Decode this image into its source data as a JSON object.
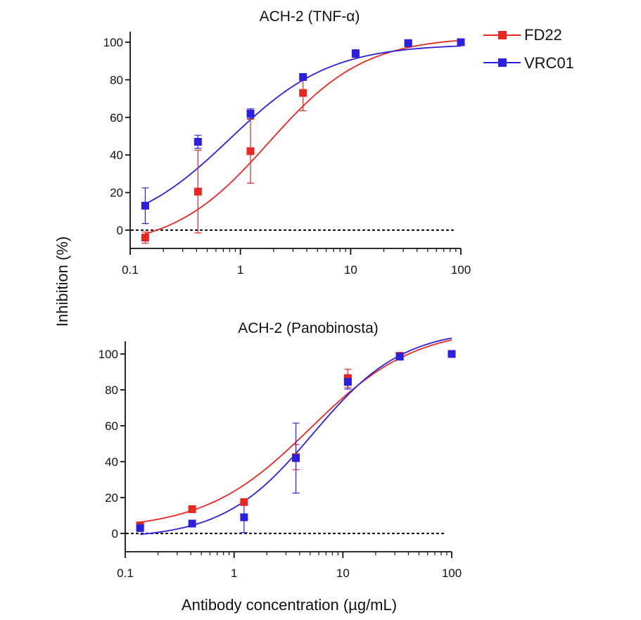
{
  "figure": {
    "shared_ylabel": "Inhibition (%)",
    "shared_xlabel": "Antibody concentration (µg/mL)"
  },
  "legend": {
    "placement": "top-right",
    "items": [
      {
        "label": "FD22",
        "color": "#e8281f"
      },
      {
        "label": "VRC01",
        "color": "#2b1fe0"
      }
    ]
  },
  "chart_data": [
    {
      "type": "scatter",
      "title": "ACH-2 (TNF-α)",
      "xscale": "log",
      "xlim": [
        0.1,
        100
      ],
      "ylim": [
        -10,
        105
      ],
      "xticks": [
        0.1,
        1,
        10,
        100
      ],
      "xtick_labels": [
        "0.1",
        "1",
        "10",
        "100"
      ],
      "yticks": [
        0,
        20,
        40,
        60,
        80,
        100
      ],
      "ytick_labels": [
        "0",
        "20",
        "40",
        "60",
        "80",
        "100"
      ],
      "reference_line": {
        "y": 0,
        "style": "dotted"
      },
      "series": [
        {
          "name": "FD22",
          "color": "#e8281f",
          "x": [
            0.137,
            0.412,
            1.235,
            3.7,
            11.1,
            33.3,
            100
          ],
          "y": [
            -4,
            20.5,
            42,
            73,
            94,
            99.5,
            100
          ],
          "err": [
            3,
            22,
            17,
            9.5,
            2,
            1,
            0.5
          ],
          "fit": {
            "bottom": -10,
            "top": 103,
            "ec50": 1.8,
            "hill": 1.0
          }
        },
        {
          "name": "VRC01",
          "color": "#2b1fe0",
          "x": [
            0.137,
            0.412,
            1.235,
            3.7,
            11.1,
            33.3,
            100
          ],
          "y": [
            13,
            47,
            62,
            81.5,
            94,
            99.5,
            100
          ],
          "err": [
            9.5,
            3.5,
            2.5,
            1.5,
            2,
            1,
            0.5
          ],
          "fit": {
            "bottom": -2,
            "top": 99,
            "ec50": 0.8,
            "hill": 0.95
          }
        }
      ]
    },
    {
      "type": "scatter",
      "title": "ACH-2 (Panobinosta)",
      "xscale": "log",
      "xlim": [
        0.1,
        100
      ],
      "ylim": [
        -10,
        110
      ],
      "xticks": [
        0.1,
        1,
        10,
        100
      ],
      "xtick_labels": [
        "0.1",
        "1",
        "10",
        "100"
      ],
      "yticks": [
        0,
        20,
        40,
        60,
        80,
        100
      ],
      "ytick_labels": [
        "0",
        "20",
        "40",
        "60",
        "80",
        "100"
      ],
      "reference_line": {
        "y": 0,
        "style": "dotted"
      },
      "series": [
        {
          "name": "FD22",
          "color": "#e8281f",
          "x": [
            0.137,
            0.412,
            1.235,
            3.7,
            11.1,
            33.3,
            100
          ],
          "y": [
            4.5,
            13.5,
            17.5,
            42.5,
            86.5,
            99,
            100
          ],
          "err": [
            1,
            0.5,
            0.5,
            7,
            5,
            0.5,
            0.5
          ],
          "fit": {
            "bottom": 2,
            "top": 115,
            "ec50": 5,
            "hill": 0.9
          }
        },
        {
          "name": "VRC01",
          "color": "#2b1fe0",
          "x": [
            0.137,
            0.412,
            1.235,
            3.7,
            11.1,
            33.3,
            100
          ],
          "y": [
            3,
            5.5,
            9,
            42,
            84.5,
            98.5,
            100
          ],
          "err": [
            1,
            0.5,
            8.5,
            19.5,
            4,
            1,
            0.5
          ],
          "fit": {
            "bottom": -3,
            "top": 114,
            "ec50": 5.3,
            "hill": 1.05
          }
        }
      ]
    }
  ]
}
